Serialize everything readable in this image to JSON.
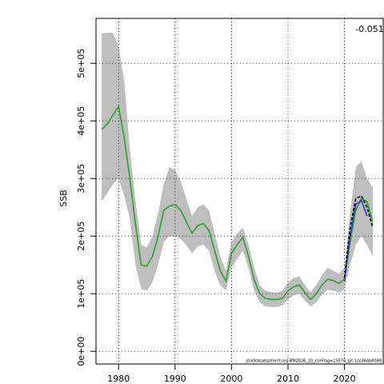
{
  "chart_data": {
    "type": "line",
    "ylabel": "SSB",
    "annotation": "-0.051",
    "footnote": "stockassessment.org BM2026_10_corFlag=1S570_git:1cc464b8090",
    "xlim": [
      1976,
      2027
    ],
    "ylim": [
      -22000,
      578000
    ],
    "xticks": [
      1980,
      1990,
      2000,
      2010,
      2020
    ],
    "yticks": [
      {
        "value": 0,
        "label": "0e+00"
      },
      {
        "value": 100000,
        "label": "1e+05"
      },
      {
        "value": 200000,
        "label": "2e+05"
      },
      {
        "value": 300000,
        "label": "3e+05"
      },
      {
        "value": 400000,
        "label": "4e+05"
      },
      {
        "value": 500000,
        "label": "5e+05"
      }
    ],
    "grid": true,
    "x": [
      1977,
      1978,
      1979,
      1980,
      1981,
      1982,
      1983,
      1984,
      1985,
      1986,
      1987,
      1988,
      1989,
      1990,
      1991,
      1992,
      1993,
      1994,
      1995,
      1996,
      1997,
      1998,
      1999,
      2000,
      2001,
      2002,
      2003,
      2004,
      2005,
      2006,
      2007,
      2008,
      2009,
      2010,
      2011,
      2012,
      2013,
      2014,
      2015,
      2016,
      2017,
      2018,
      2019,
      2020,
      2021,
      2022,
      2023,
      2024,
      2025
    ],
    "band": {
      "color": "#bebebe",
      "upper": [
        552000,
        553000,
        553000,
        530000,
        470000,
        350000,
        260000,
        185000,
        180000,
        200000,
        240000,
        290000,
        320000,
        315000,
        295000,
        265000,
        235000,
        250000,
        255000,
        245000,
        205000,
        165000,
        140000,
        190000,
        205000,
        215000,
        185000,
        145000,
        115000,
        105000,
        103000,
        102000,
        105000,
        120000,
        127000,
        130000,
        115000,
        103000,
        115000,
        132000,
        145000,
        140000,
        135000,
        145000,
        240000,
        320000,
        330000,
        300000,
        285000
      ],
      "lower": [
        260000,
        275000,
        290000,
        300000,
        270000,
        230000,
        150000,
        108000,
        105000,
        120000,
        150000,
        190000,
        200000,
        200000,
        195000,
        185000,
        170000,
        182000,
        185000,
        175000,
        140000,
        115000,
        105000,
        145000,
        160000,
        175000,
        145000,
        105000,
        85000,
        78000,
        77000,
        77000,
        80000,
        90000,
        97000,
        100000,
        88000,
        78000,
        85000,
        98000,
        107000,
        105000,
        102000,
        108000,
        150000,
        185000,
        200000,
        185000,
        165000
      ]
    },
    "series": [
      {
        "color": "#2ca02c",
        "values": [
          385000,
          395000,
          410000,
          425000,
          370000,
          300000,
          220000,
          150000,
          148000,
          165000,
          200000,
          245000,
          252000,
          255000,
          245000,
          225000,
          205000,
          218000,
          222000,
          210000,
          175000,
          140000,
          122000,
          170000,
          185000,
          198000,
          165000,
          125000,
          100000,
          92000,
          90000,
          90000,
          92000,
          105000,
          112000,
          115000,
          102000,
          90000,
          100000,
          115000,
          125000,
          123000,
          118000,
          125000,
          190000,
          245000,
          265000,
          260000,
          225000
        ]
      },
      {
        "color": "#3333cc",
        "x": [
          2020,
          2021,
          2022,
          2023,
          2024
        ],
        "values": [
          122000,
          200000,
          255000,
          262000,
          235000
        ]
      },
      {
        "color": "#000000",
        "dash": true,
        "x": [
          2020,
          2021,
          2022,
          2023,
          2024,
          2025
        ],
        "values": [
          128000,
          215000,
          265000,
          270000,
          250000,
          215000
        ]
      }
    ]
  }
}
